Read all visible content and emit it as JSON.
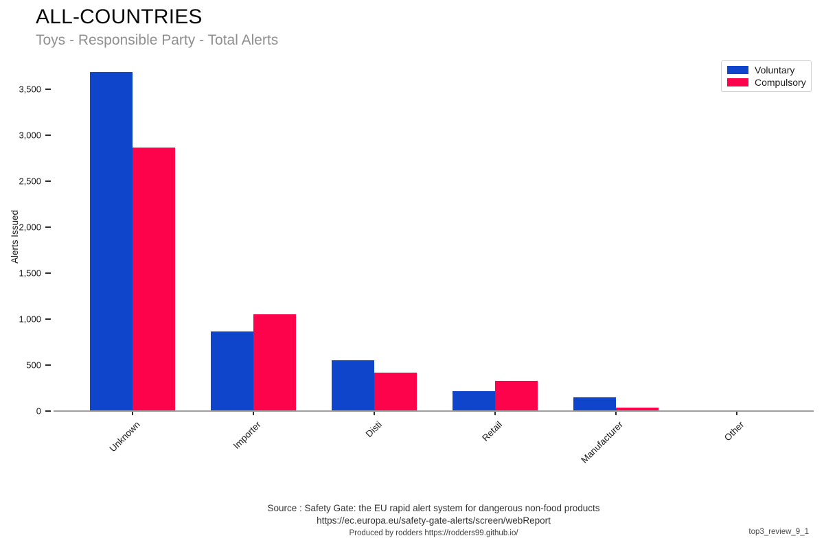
{
  "header": {
    "title": "ALL-COUNTRIES",
    "subtitle": "Toys - Responsible Party - Total Alerts"
  },
  "chart_data": {
    "type": "bar",
    "categories": [
      "Unknown",
      "Importer",
      "Disti",
      "Retail",
      "Manufacturer",
      "Other"
    ],
    "series": [
      {
        "name": "Voluntary",
        "color": "#0E45CB",
        "values": [
          3685,
          865,
          550,
          215,
          150,
          0
        ]
      },
      {
        "name": "Compulsory",
        "color": "#FC034C",
        "values": [
          2865,
          1050,
          415,
          330,
          40,
          0
        ]
      }
    ],
    "title": "ALL-COUNTRIES",
    "subtitle": "Toys - Responsible Party - Total Alerts",
    "xlabel": "",
    "ylabel": "Alerts Issued",
    "ylim": [
      0,
      3700
    ],
    "yticks": [
      0,
      500,
      1000,
      1500,
      2000,
      2500,
      3000,
      3500
    ],
    "grid": false,
    "legend_position": "top-right"
  },
  "footer": {
    "source_line1": "Source : Safety Gate: the EU rapid alert system for dangerous non-food products",
    "source_line2": "https://ec.europa.eu/safety-gate-alerts/screen/webReport",
    "produced_by": "Produced by rodders https://rodders99.github.io/",
    "report_id": "top3_review_9_1"
  }
}
